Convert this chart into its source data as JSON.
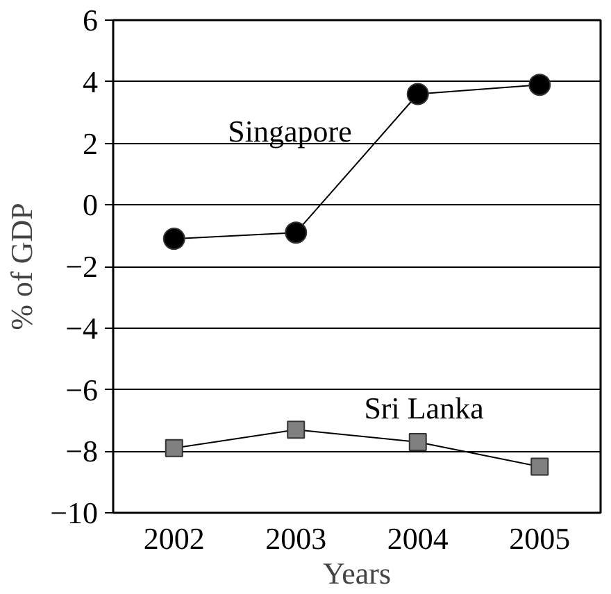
{
  "chart_data": {
    "type": "line",
    "xlabel": "Years",
    "ylabel": "% of GDP",
    "categories": [
      "2002",
      "2003",
      "2004",
      "2005"
    ],
    "series": [
      {
        "name": "Singapore",
        "color": "#000000",
        "marker": "circle",
        "values": [
          -1.1,
          -0.9,
          3.6,
          3.9
        ]
      },
      {
        "name": "Sri Lanka",
        "color": "#808080",
        "marker": "square",
        "values": [
          -7.9,
          -7.3,
          -7.7,
          -8.5
        ]
      }
    ],
    "ylim": [
      -10,
      6
    ],
    "yticks": [
      {
        "value": -10,
        "label": "−10"
      },
      {
        "value": -8,
        "label": "−8"
      },
      {
        "value": -6,
        "label": "−6"
      },
      {
        "value": -4,
        "label": "−4"
      },
      {
        "value": -2,
        "label": "−2"
      },
      0,
      2,
      4,
      6
    ],
    "grid": "y",
    "legend": false,
    "line_style": "solid"
  }
}
